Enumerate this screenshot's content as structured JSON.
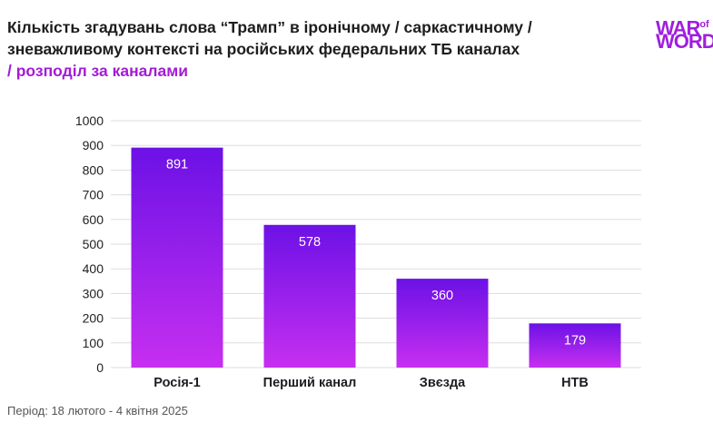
{
  "title": {
    "line1": "Кількість згадувань слова “Трамп” в іронічному / саркастичному /",
    "line2": "зневажливому контексті на російських федеральних ТБ каналах",
    "line3": "/ розподіл за каналами"
  },
  "logo": {
    "line1": "WAR",
    "of": "of",
    "line2": "WORDS"
  },
  "footer": "Період: 18 лютого - 4 квітня 2025",
  "colors": {
    "bar_top": "#6c11e6",
    "bar_bottom": "#c62ff0",
    "title_accent": "#a21bd6",
    "grid": "#dddddd"
  },
  "chart_data": {
    "type": "bar",
    "categories": [
      "Росія-1",
      "Перший канал",
      "Звєзда",
      "НТВ"
    ],
    "values": [
      891,
      578,
      360,
      179
    ],
    "ylim": [
      0,
      1000
    ],
    "yticks": [
      0,
      100,
      200,
      300,
      400,
      500,
      600,
      700,
      800,
      900,
      1000
    ],
    "grid": true,
    "title": "",
    "xlabel": "",
    "ylabel": ""
  }
}
